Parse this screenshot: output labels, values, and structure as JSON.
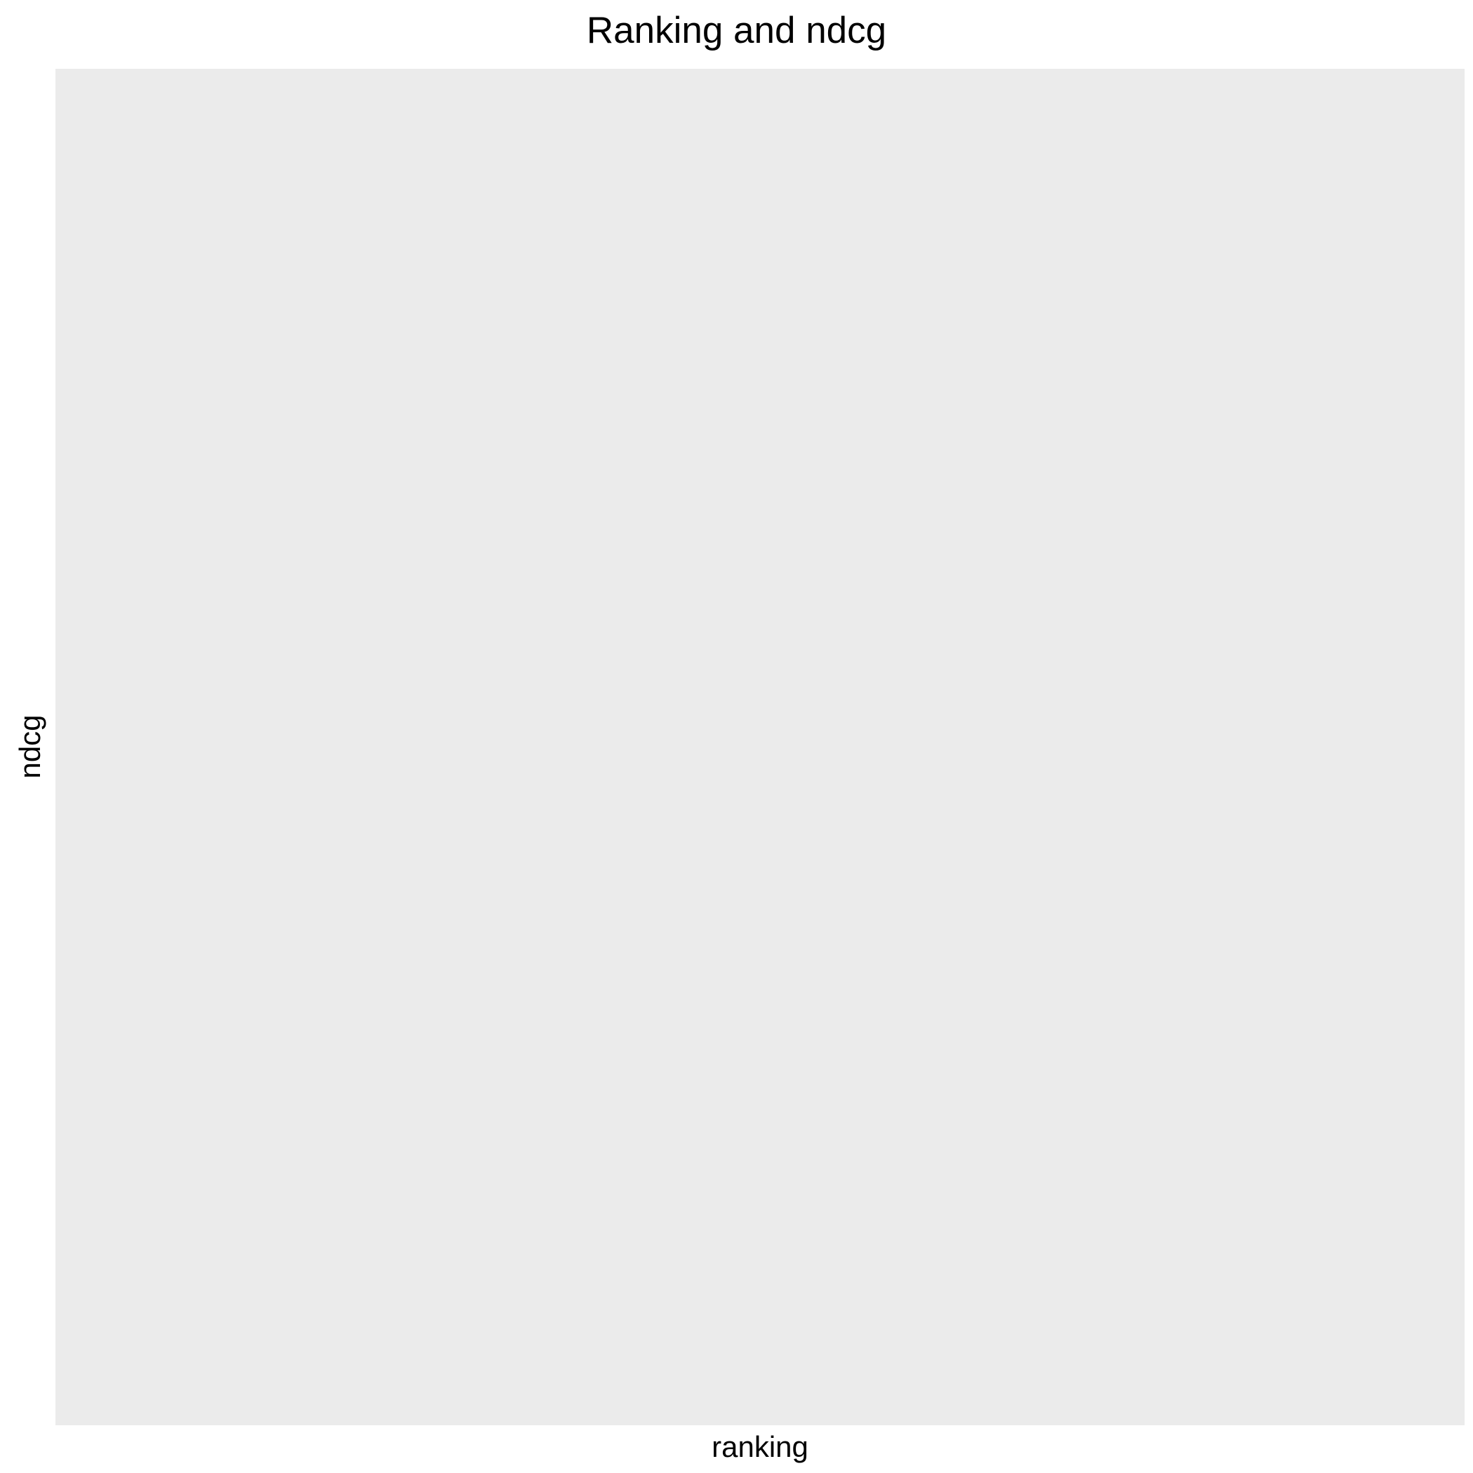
{
  "chart_data": {
    "type": "scatter",
    "title": "Ranking and ndcg",
    "xlabel": "ranking",
    "ylabel": "ndcg",
    "x": [],
    "y": [],
    "series": [],
    "grid": false,
    "legend": "none",
    "colors": {
      "panel_background": "#EBEBEB",
      "page_background": "#FFFFFF",
      "text": "#000000"
    }
  }
}
